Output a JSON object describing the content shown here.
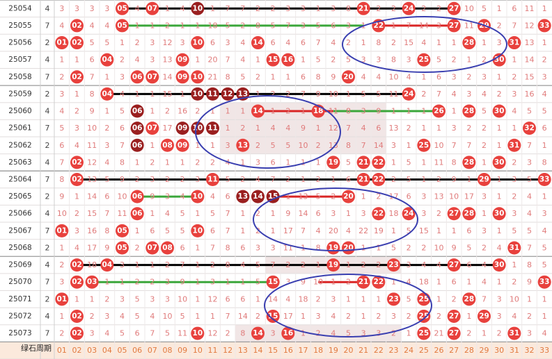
{
  "table": {
    "rows": [
      {
        "issue": "25054",
        "tail": "4",
        "cells": [
          "3",
          "3",
          "3",
          "3",
          "05",
          "4",
          "07",
          "1",
          "4",
          "10",
          "1",
          "7",
          "7",
          "2",
          "2",
          "3",
          "3",
          "1",
          "3",
          "8",
          "21",
          "2",
          "2",
          "24",
          "2",
          "2",
          "27",
          "10",
          "5",
          "1",
          "6",
          "11",
          "1"
        ],
        "dark": [
          "10"
        ]
      },
      {
        "issue": "25055",
        "tail": "7",
        "cells": [
          "4",
          "02",
          "4",
          "4",
          "05",
          "1",
          "1",
          "2",
          "1",
          "1",
          "18",
          "5",
          "2",
          "8",
          "5",
          "7",
          "3",
          "5",
          "6",
          "3",
          "1",
          "22",
          "1",
          "7",
          "14",
          "3",
          "27",
          "11",
          "29",
          "2",
          "7",
          "12",
          "33"
        ],
        "dark": []
      },
      {
        "issue": "25056",
        "tail": "2",
        "cells": [
          "01",
          "02",
          "5",
          "5",
          "1",
          "2",
          "3",
          "12",
          "3",
          "10",
          "6",
          "3",
          "4",
          "14",
          "6",
          "4",
          "6",
          "7",
          "4",
          "2",
          "1",
          "8",
          "2",
          "15",
          "4",
          "1",
          "1",
          "28",
          "1",
          "3",
          "31",
          "13",
          "1"
        ],
        "dark": []
      },
      {
        "issue": "25057",
        "tail": "4",
        "cells": [
          "1",
          "1",
          "6",
          "04",
          "2",
          "4",
          "3",
          "13",
          "09",
          "1",
          "20",
          "7",
          "4",
          "1",
          "15",
          "16",
          "1",
          "5",
          "2",
          "5",
          "3",
          "3",
          "8",
          "3",
          "25",
          "5",
          "2",
          "1",
          "2",
          "30",
          "1",
          "14",
          "2"
        ],
        "dark": []
      },
      {
        "issue": "25058",
        "tail": "7",
        "cells": [
          "2",
          "02",
          "7",
          "1",
          "3",
          "06",
          "07",
          "14",
          "09",
          "10",
          "21",
          "8",
          "5",
          "2",
          "1",
          "1",
          "6",
          "8",
          "9",
          "20",
          "4",
          "4",
          "10",
          "4",
          "1",
          "6",
          "3",
          "2",
          "3",
          "1",
          "2",
          "15",
          "3"
        ],
        "dark": []
      },
      {
        "issue": "25059",
        "tail": "2",
        "cells": [
          "3",
          "1",
          "8",
          "04",
          "4",
          "1",
          "1",
          "15",
          "1",
          "10",
          "11",
          "12",
          "13",
          "1",
          "2",
          "2",
          "7",
          "9",
          "10",
          "1",
          "5",
          "5",
          "11",
          "24",
          "2",
          "7",
          "4",
          "3",
          "4",
          "2",
          "3",
          "16",
          "4"
        ],
        "dark": [
          "10",
          "11",
          "12",
          "13"
        ]
      },
      {
        "issue": "25060",
        "tail": "4",
        "cells": [
          "4",
          "2",
          "9",
          "1",
          "5",
          "06",
          "1",
          "2",
          "16",
          "2",
          "1",
          "1",
          "1",
          "14",
          "1",
          "2",
          "1",
          "18",
          "11",
          "8",
          "3",
          "9",
          "1",
          "1",
          "1",
          "26",
          "1",
          "28",
          "5",
          "30",
          "4",
          "5",
          "5"
        ],
        "dark": [
          "06"
        ]
      },
      {
        "issue": "25061",
        "tail": "7",
        "cells": [
          "5",
          "3",
          "10",
          "2",
          "6",
          "06",
          "07",
          "17",
          "09",
          "10",
          "11",
          "1",
          "2",
          "1",
          "4",
          "4",
          "9",
          "1",
          "12",
          "7",
          "4",
          "6",
          "13",
          "2",
          "1",
          "1",
          "3",
          "2",
          "2",
          "1",
          "1",
          "32",
          "6"
        ],
        "dark": [
          "06",
          "09",
          "10",
          "11"
        ]
      },
      {
        "issue": "25062",
        "tail": "2",
        "cells": [
          "6",
          "4",
          "11",
          "3",
          "7",
          "06",
          "1",
          "08",
          "09",
          "1",
          "1",
          "3",
          "13",
          "2",
          "5",
          "5",
          "10",
          "2",
          "13",
          "8",
          "7",
          "14",
          "3",
          "1",
          "25",
          "10",
          "7",
          "7",
          "2",
          "1",
          "31",
          "7",
          "1"
        ],
        "dark": [
          "06"
        ]
      },
      {
        "issue": "25063",
        "tail": "4",
        "cells": [
          "7",
          "02",
          "12",
          "4",
          "8",
          "1",
          "2",
          "1",
          "1",
          "2",
          "2",
          "4",
          "1",
          "3",
          "6",
          "1",
          "1",
          "1",
          "19",
          "5",
          "21",
          "22",
          "1",
          "5",
          "1",
          "11",
          "8",
          "28",
          "1",
          "30",
          "2",
          "3",
          "8"
        ],
        "dark": []
      },
      {
        "issue": "25064",
        "tail": "7",
        "cells": [
          "8",
          "02",
          "13",
          "5",
          "9",
          "2",
          "3",
          "2",
          "2",
          "3",
          "11",
          "5",
          "2",
          "4",
          "7",
          "2",
          "1",
          "2",
          "1",
          "6",
          "21",
          "22",
          "2",
          "5",
          "1",
          "2",
          "9",
          "1",
          "29",
          "1",
          "3",
          "5",
          "33"
        ],
        "dark": []
      },
      {
        "issue": "25065",
        "tail": "2",
        "cells": [
          "9",
          "1",
          "14",
          "6",
          "10",
          "06",
          "9",
          "3",
          "4",
          "10",
          "4",
          "6",
          "13",
          "14",
          "15",
          "1",
          "13",
          "5",
          "2",
          "20",
          "1",
          "2",
          "17",
          "6",
          "3",
          "13",
          "10",
          "17",
          "3",
          "1",
          "2",
          "4",
          "1"
        ],
        "dark": [
          "13",
          "14",
          "15"
        ]
      },
      {
        "issue": "25066",
        "tail": "4",
        "cells": [
          "10",
          "2",
          "15",
          "7",
          "11",
          "06",
          "1",
          "4",
          "5",
          "1",
          "5",
          "7",
          "1",
          "2",
          "1",
          "9",
          "14",
          "6",
          "3",
          "1",
          "3",
          "22",
          "18",
          "24",
          "3",
          "2",
          "27",
          "28",
          "1",
          "30",
          "3",
          "4",
          "3"
        ],
        "dark": []
      },
      {
        "issue": "25067",
        "tail": "7",
        "cells": [
          "01",
          "3",
          "16",
          "8",
          "05",
          "1",
          "6",
          "5",
          "5",
          "10",
          "6",
          "7",
          "1",
          "2",
          "1",
          "17",
          "7",
          "4",
          "20",
          "4",
          "22",
          "19",
          "1",
          "5",
          "15",
          "1",
          "1",
          "6",
          "3",
          "1",
          "5",
          "5",
          "4"
        ],
        "dark": []
      },
      {
        "issue": "25068",
        "tail": "2",
        "cells": [
          "1",
          "4",
          "17",
          "9",
          "05",
          "2",
          "07",
          "08",
          "6",
          "1",
          "7",
          "8",
          "6",
          "3",
          "3",
          "11",
          "1",
          "8",
          "19",
          "20",
          "1",
          "1",
          "5",
          "2",
          "2",
          "10",
          "9",
          "5",
          "2",
          "4",
          "31",
          "7",
          "5"
        ],
        "dark": []
      },
      {
        "issue": "25069",
        "tail": "4",
        "cells": [
          "2",
          "02",
          "18",
          "04",
          "3",
          "1",
          "1",
          "2",
          "7",
          "1",
          "2",
          "8",
          "4",
          "5",
          "7",
          "2",
          "2",
          "1",
          "19",
          "1",
          "2",
          "2",
          "23",
          "3",
          "4",
          "4",
          "27",
          "6",
          "4",
          "30",
          "1",
          "8",
          "5"
        ],
        "dark": []
      },
      {
        "issue": "25070",
        "tail": "7",
        "cells": [
          "3",
          "02",
          "03",
          "1",
          "1",
          "2",
          "2",
          "3",
          "9",
          "1",
          "3",
          "1",
          "1",
          "5",
          "15",
          "3",
          "9",
          "10",
          "1",
          "2",
          "21",
          "22",
          "1",
          "4",
          "18",
          "1",
          "6",
          "1",
          "4",
          "1",
          "2",
          "9",
          "33"
        ],
        "dark": []
      },
      {
        "issue": "25071",
        "tail": "2",
        "cells": [
          "01",
          "1",
          "1",
          "2",
          "3",
          "5",
          "3",
          "3",
          "10",
          "1",
          "12",
          "6",
          "6",
          "1",
          "14",
          "4",
          "18",
          "2",
          "3",
          "1",
          "1",
          "1",
          "23",
          "5",
          "25",
          "1",
          "2",
          "28",
          "7",
          "3",
          "10",
          "1",
          "1"
        ],
        "dark": []
      },
      {
        "issue": "25072",
        "tail": "4",
        "cells": [
          "1",
          "02",
          "2",
          "3",
          "4",
          "5",
          "4",
          "10",
          "5",
          "1",
          "1",
          "7",
          "14",
          "2",
          "15",
          "17",
          "1",
          "3",
          "4",
          "2",
          "1",
          "2",
          "3",
          "2",
          "25",
          "2",
          "27",
          "1",
          "29",
          "3",
          "4",
          "2",
          "1"
        ],
        "dark": []
      },
      {
        "issue": "25073",
        "tail": "7",
        "cells": [
          "2",
          "02",
          "3",
          "4",
          "5",
          "6",
          "7",
          "5",
          "11",
          "10",
          "12",
          "2",
          "8",
          "14",
          "3",
          "16",
          "1",
          "2",
          "4",
          "5",
          "3",
          "3",
          "2",
          "1",
          "25",
          "21",
          "27",
          "2",
          "1",
          "2",
          "31",
          "3",
          "4"
        ],
        "dark": []
      }
    ],
    "footer": {
      "columns": [
        "01",
        "02",
        "03",
        "04",
        "05",
        "06",
        "07",
        "08",
        "09",
        "10",
        "11",
        "12",
        "13",
        "14",
        "15",
        "16",
        "17",
        "18",
        "19",
        "20",
        "21",
        "22",
        "23",
        "24",
        "25",
        "26",
        "27",
        "28",
        "29",
        "30",
        "31",
        "32",
        "33"
      ],
      "watermark": "绿石周期"
    },
    "ball_color": "#e8413d",
    "dark_color": "#9a1f1f"
  }
}
